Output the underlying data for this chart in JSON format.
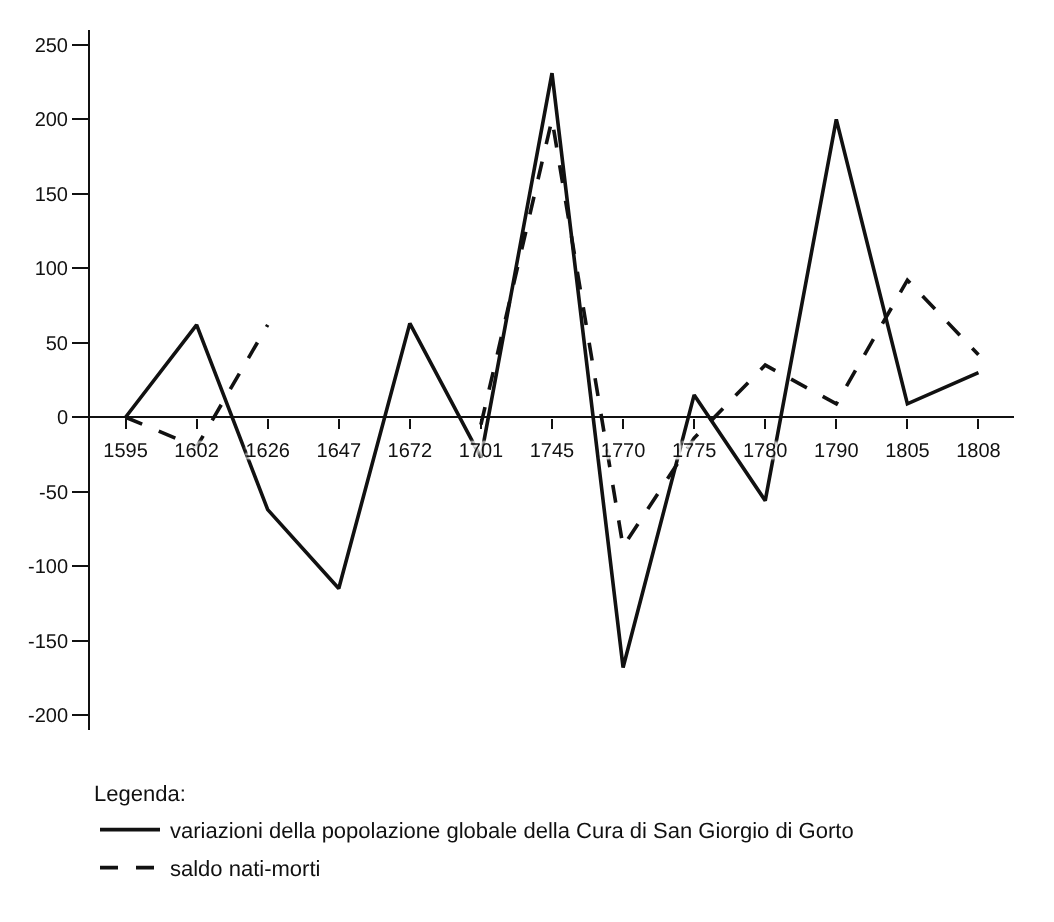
{
  "chart_data": {
    "type": "line",
    "categories": [
      "1595",
      "1602",
      "1626",
      "1647",
      "1672",
      "1701",
      "1745",
      "1770",
      "1775",
      "1780",
      "1790",
      "1805",
      "1808"
    ],
    "series": [
      {
        "name": "variazioni della popolazione globale della Cura di San Giorgio di Gorto",
        "color": "#111111",
        "line_style": "solid",
        "values": [
          0,
          62,
          -62,
          -115,
          63,
          -27,
          231,
          -168,
          15,
          -56,
          200,
          9,
          30
        ]
      },
      {
        "name": "saldo nati-morti",
        "color": "#111111",
        "line_style": "dashed",
        "values": [
          0,
          -20,
          62,
          null,
          null,
          -5,
          200,
          -87,
          -14,
          35,
          9,
          92,
          42
        ]
      }
    ],
    "ylim": [
      -210,
      260
    ],
    "yticks": [
      -200,
      -150,
      -100,
      -50,
      0,
      50,
      100,
      150,
      200,
      250
    ],
    "legend_title": "Legenda:",
    "legend": "bottom",
    "grid": false,
    "marker": "none"
  }
}
